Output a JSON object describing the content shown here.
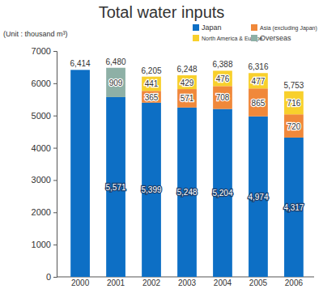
{
  "chart_data": {
    "type": "bar",
    "title": "Total water inputs",
    "y_label": "(Unit : thousand m³)",
    "stacked": true,
    "data_labels": true,
    "grid": false,
    "legend": "top-right",
    "categories": [
      "2000",
      "2001",
      "2002",
      "2003",
      "2004",
      "2005",
      "2006"
    ],
    "series": [
      {
        "name": "Japan",
        "color": "#0d6fc5",
        "values": [
          6414,
          5571,
          5399,
          5248,
          5204,
          4974,
          4317
        ],
        "value_labels": [
          null,
          "5,571",
          "5,399",
          "5,248",
          "5,204",
          "4,974",
          "4,317"
        ]
      },
      {
        "name": "Asia (excluding Japan)",
        "color": "#f0883a",
        "values": [
          null,
          null,
          365,
          571,
          708,
          865,
          720
        ],
        "value_labels": [
          null,
          null,
          "365",
          "571",
          "708",
          "865",
          "720"
        ]
      },
      {
        "name": "North America & Europe",
        "color": "#f8d02c",
        "values": [
          null,
          null,
          441,
          429,
          476,
          477,
          716
        ],
        "value_labels": [
          null,
          null,
          "441",
          "429",
          "476",
          "477",
          "716"
        ]
      },
      {
        "name": "Overseas",
        "color": "#8eb0a6",
        "values": [
          null,
          909,
          null,
          null,
          null,
          null,
          null
        ],
        "value_labels": [
          null,
          "909",
          null,
          null,
          null,
          null,
          null
        ]
      }
    ],
    "totals": [
      6414,
      6480,
      6205,
      6248,
      6388,
      6316,
      5753
    ],
    "total_labels": [
      "6,414",
      "6,480",
      "6,205",
      "6,248",
      "6,388",
      "6,316",
      "5,753"
    ],
    "ylim": [
      0,
      7000
    ],
    "yticks": [
      0,
      1000,
      2000,
      3000,
      4000,
      5000,
      6000,
      7000
    ]
  }
}
